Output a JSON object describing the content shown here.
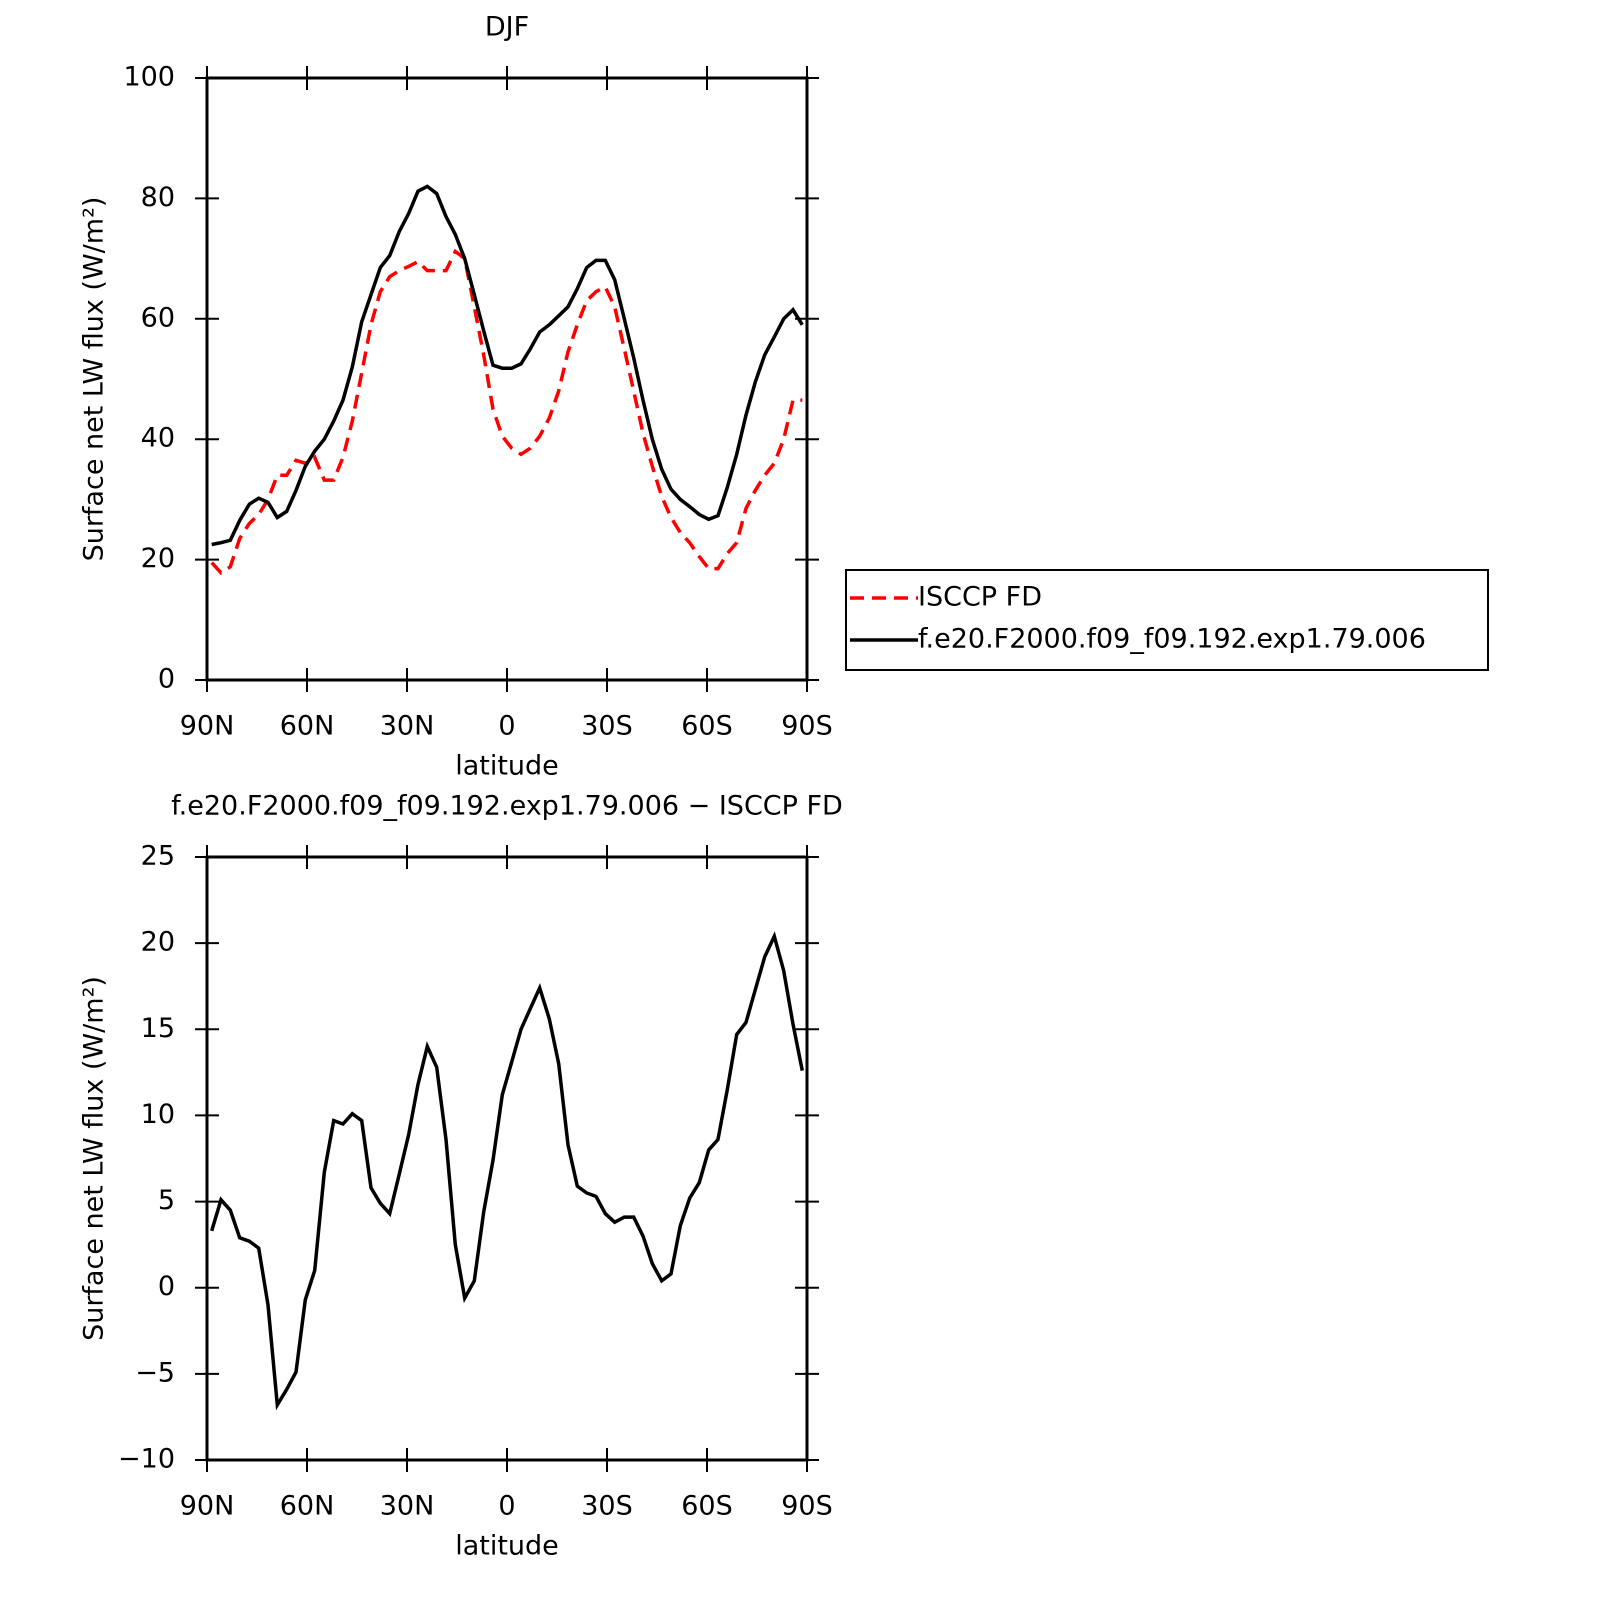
{
  "chart_data": [
    {
      "type": "line",
      "title": "DJF",
      "xlabel": "latitude",
      "ylabel": "Surface net LW flux (W/m²)",
      "x": [
        88.6,
        85.8,
        83.0,
        80.2,
        77.3,
        74.5,
        71.7,
        68.9,
        66.1,
        63.3,
        60.5,
        57.7,
        54.8,
        52.0,
        49.2,
        46.4,
        43.6,
        40.8,
        38.0,
        35.2,
        32.3,
        29.5,
        26.7,
        23.9,
        21.1,
        18.3,
        15.5,
        12.7,
        9.8,
        7.0,
        4.2,
        1.4,
        -1.4,
        -4.2,
        -7.0,
        -9.8,
        -12.7,
        -15.5,
        -18.3,
        -21.1,
        -23.9,
        -26.7,
        -29.5,
        -32.3,
        -35.2,
        -38.0,
        -40.8,
        -43.6,
        -46.4,
        -49.2,
        -52.0,
        -54.8,
        -57.7,
        -60.5,
        -63.3,
        -66.1,
        -68.9,
        -71.7,
        -74.5,
        -77.3,
        -80.2,
        -83.0,
        -85.8,
        -88.6
      ],
      "series": [
        {
          "name": "ISCCP FD",
          "color": "#ff0000",
          "linestyle": "dashed",
          "values": [
            19.5,
            17.8,
            18.8,
            23.5,
            26,
            27.5,
            30,
            34,
            34,
            36.5,
            36,
            37,
            33.2,
            33.2,
            37,
            43,
            51,
            59,
            64.5,
            67,
            68,
            68.7,
            69.5,
            68,
            68,
            68,
            71.2,
            70,
            62,
            54,
            45,
            40.5,
            38.5,
            37.5,
            38.5,
            40.5,
            43.5,
            48,
            54.5,
            59,
            63,
            64.5,
            65.3,
            62,
            55,
            48,
            41,
            35.5,
            30.5,
            27,
            24.5,
            22.8,
            20.5,
            18.5,
            18.5,
            21,
            22.8,
            28.5,
            31.5,
            34,
            36,
            40,
            46.5,
            46.5
          ]
        },
        {
          "name": "f.e20.F2000.f09_f09.192.exp1.79.006",
          "color": "#000000",
          "linestyle": "solid",
          "values": [
            22.5,
            22.8,
            23.2,
            26.5,
            29.2,
            30.2,
            29.5,
            27,
            28,
            31.5,
            35.5,
            38,
            40,
            43,
            46.5,
            52,
            59.5,
            64,
            68.5,
            70.5,
            74.5,
            77.5,
            81.2,
            82,
            80.8,
            77,
            74,
            70,
            64,
            58,
            52.3,
            51.8,
            51.8,
            52.5,
            55,
            57.8,
            59,
            60.5,
            62,
            65,
            68.5,
            69.7,
            69.7,
            66.5,
            60,
            53.5,
            46.5,
            40,
            35,
            31.7,
            30,
            28.8,
            27.5,
            26.7,
            27.3,
            32,
            37.5,
            44,
            49.5,
            54,
            57,
            60,
            61.5,
            59
          ]
        }
      ],
      "xlim": [
        90,
        -90
      ],
      "xticks": [
        {
          "value": 90,
          "label": "90N"
        },
        {
          "value": 60,
          "label": "60N"
        },
        {
          "value": 30,
          "label": "30N"
        },
        0,
        {
          "value": -30,
          "label": "30S"
        },
        {
          "value": -60,
          "label": "60S"
        },
        {
          "value": -90,
          "label": "90S"
        }
      ],
      "ylim": [
        0,
        100
      ],
      "yticks": [
        0,
        20,
        40,
        60,
        80,
        100
      ],
      "legend": "right"
    },
    {
      "type": "line",
      "title": "f.e20.F2000.f09_f09.192.exp1.79.006 − ISCCP FD",
      "xlabel": "latitude",
      "ylabel": "Surface net LW flux (W/m²)",
      "x": [
        88.6,
        85.8,
        83.0,
        80.2,
        77.3,
        74.5,
        71.7,
        68.9,
        66.1,
        63.3,
        60.5,
        57.7,
        54.8,
        52.0,
        49.2,
        46.4,
        43.6,
        40.8,
        38.0,
        35.2,
        32.3,
        29.5,
        26.7,
        23.9,
        21.1,
        18.3,
        15.5,
        12.7,
        9.8,
        7.0,
        4.2,
        1.4,
        -1.4,
        -4.2,
        -7.0,
        -9.8,
        -12.7,
        -15.5,
        -18.3,
        -21.1,
        -23.9,
        -26.7,
        -29.5,
        -32.3,
        -35.2,
        -38.0,
        -40.8,
        -43.6,
        -46.4,
        -49.2,
        -52.0,
        -54.8,
        -57.7,
        -60.5,
        -63.3,
        -66.1,
        -68.9,
        -71.7,
        -74.5,
        -77.3,
        -80.2,
        -83.0,
        -85.8,
        -88.6
      ],
      "series": [
        {
          "color": "#000000",
          "linestyle": "solid",
          "values": [
            3.3,
            5.1,
            4.5,
            2.9,
            2.7,
            2.3,
            -1,
            -6.8,
            -5.9,
            -4.9,
            -0.7,
            1,
            6.7,
            9.7,
            9.5,
            10.1,
            9.7,
            5.8,
            4.9,
            4.3,
            6.6,
            8.9,
            11.8,
            14,
            12.8,
            8.6,
            2.5,
            -0.6,
            0.4,
            4.4,
            7.4,
            11.2,
            13.1,
            15,
            16.2,
            17.4,
            15.6,
            13,
            8.3,
            5.9,
            5.5,
            5.3,
            4.3,
            3.8,
            4.1,
            4.1,
            3,
            1.4,
            0.4,
            0.8,
            3.6,
            5.2,
            6.1,
            8,
            8.6,
            11.5,
            14.7,
            15.4,
            17.3,
            19.2,
            20.4,
            18.4,
            15.3,
            12.6
          ]
        }
      ],
      "xlim": [
        90,
        -90
      ],
      "xticks": [
        {
          "value": 90,
          "label": "90N"
        },
        {
          "value": 60,
          "label": "60N"
        },
        {
          "value": 30,
          "label": "30N"
        },
        0,
        {
          "value": -30,
          "label": "30S"
        },
        {
          "value": -60,
          "label": "60S"
        },
        {
          "value": -90,
          "label": "90S"
        }
      ],
      "ylim": [
        -10,
        25
      ],
      "yticks": [
        {
          "value": -10,
          "label": "−10"
        },
        {
          "value": -5,
          "label": "−5"
        },
        0,
        5,
        10,
        15,
        20,
        25
      ]
    }
  ]
}
